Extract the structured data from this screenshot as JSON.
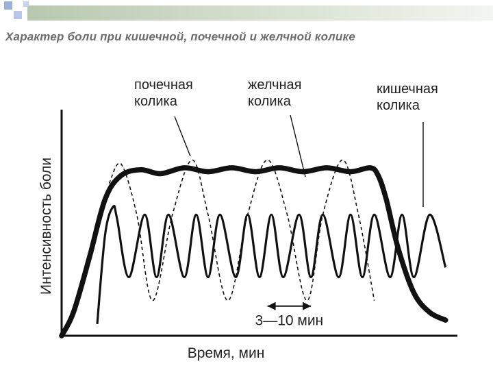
{
  "slide": {
    "title": "Характер боли при кишечной, почечной и желчной колике"
  },
  "chart_data": {
    "type": "line",
    "title": "Характер боли при кишечной, почечной и желчной колике",
    "xlabel": "Время, мин",
    "ylabel": "Интенсивность боли",
    "xlim": [
      0,
      100
    ],
    "ylim": [
      0,
      100
    ],
    "grid": false,
    "ticks": false,
    "series": [
      {
        "name": "почечная колика",
        "style": "dashed",
        "x": [
          12,
          15,
          19,
          23,
          28,
          33,
          37,
          42,
          47,
          52,
          57,
          62,
          66,
          71,
          75,
          79
        ],
        "y": [
          78,
          88,
          62,
          18,
          62,
          90,
          62,
          18,
          62,
          90,
          62,
          18,
          62,
          90,
          62,
          18
        ]
      },
      {
        "name": "желчная колика",
        "style": "thick",
        "x": [
          0,
          3,
          7,
          11,
          15,
          20,
          25,
          31,
          37,
          43,
          49,
          55,
          61,
          67,
          73,
          78,
          80,
          82,
          85,
          89,
          93,
          97
        ],
        "y": [
          0,
          12,
          40,
          70,
          82,
          85,
          83,
          86,
          84,
          86,
          84,
          86,
          84,
          86,
          84,
          86,
          82,
          70,
          45,
          22,
          12,
          8
        ]
      },
      {
        "name": "кишечная колика",
        "style": "solid",
        "x": [
          9,
          11,
          13,
          14,
          17,
          21,
          24,
          27,
          31,
          34,
          37,
          40,
          44,
          47,
          50,
          53,
          56,
          60,
          63,
          66,
          70,
          73,
          76,
          79,
          83,
          86,
          89,
          93,
          97
        ],
        "y": [
          6,
          52,
          66,
          60,
          30,
          62,
          30,
          62,
          30,
          62,
          30,
          62,
          30,
          62,
          30,
          62,
          30,
          62,
          30,
          62,
          30,
          62,
          30,
          62,
          30,
          62,
          30,
          62,
          35
        ]
      }
    ],
    "labels": [
      {
        "text_line1": "почечная",
        "text_line2": "колика",
        "series": "почечная колика"
      },
      {
        "text_line1": "желчная",
        "text_line2": "колика",
        "series": "желчная колика"
      },
      {
        "text_line1": "кишечная",
        "text_line2": "колика",
        "series": "кишечная колика"
      }
    ],
    "annotation": {
      "text": "3—10 мин",
      "x_from": 52,
      "x_to": 63,
      "y": 18
    }
  }
}
